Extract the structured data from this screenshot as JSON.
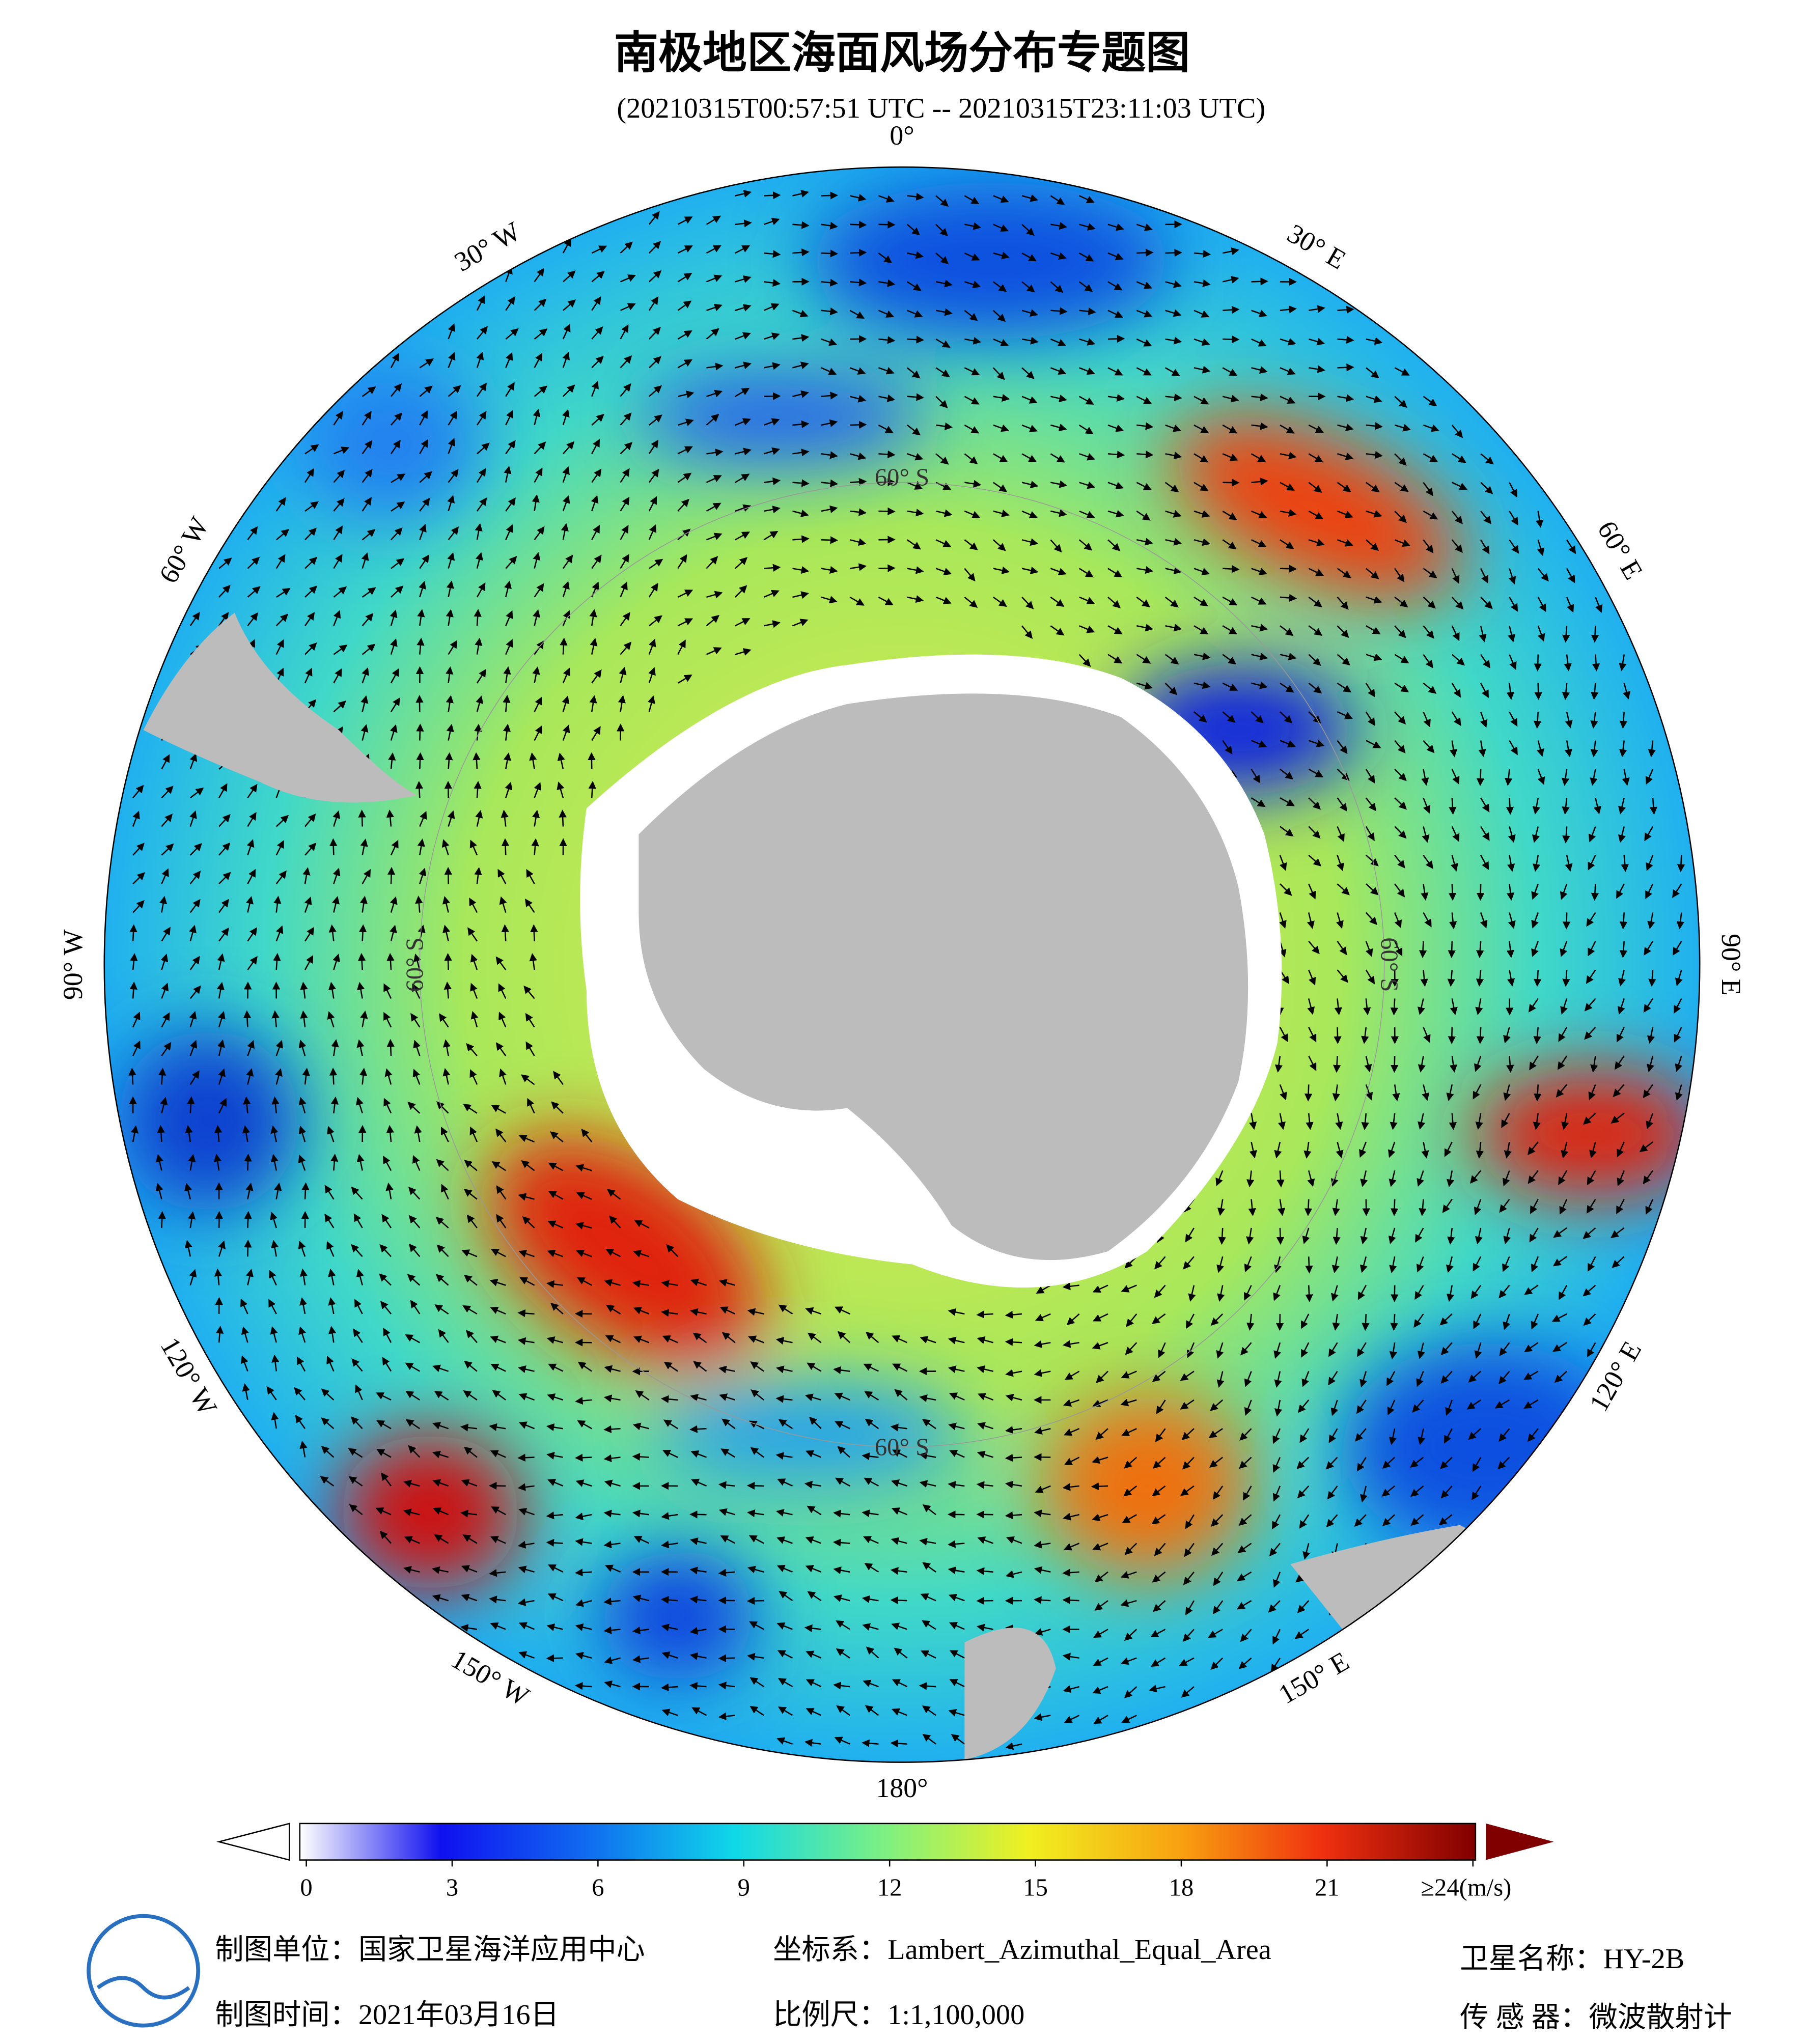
{
  "header": {
    "title": "南极地区海面风场分布专题图",
    "subtitle": "(20210315T00:57:51 UTC -- 20210315T23:11:03 UTC)"
  },
  "map": {
    "longitude_labels": [
      "0°",
      "30° E",
      "60° E",
      "90° E",
      "120° E",
      "150° E",
      "180°",
      "150° W",
      "120° W",
      "90° W",
      "60° W",
      "30° W"
    ],
    "latitude_labels": [
      "60° S",
      "60° S",
      "60° S",
      "60° S"
    ]
  },
  "colorbar": {
    "range": [
      0,
      24
    ],
    "ticks": [
      0,
      3,
      6,
      9,
      12,
      15,
      18,
      21,
      {
        "value": 24,
        "label": "≥24(m/s)"
      }
    ]
  },
  "footer": {
    "producer": "制图单位：国家卫星海洋应用中心",
    "date": "制图时间：2021年03月16日",
    "projection": "坐标系：Lambert_Azimuthal_Equal_Area",
    "scale": "比例尺：1:1,100,000",
    "satellite": "卫星名称：HY-2B",
    "sensor": "传 感 器：微波散射计"
  }
}
